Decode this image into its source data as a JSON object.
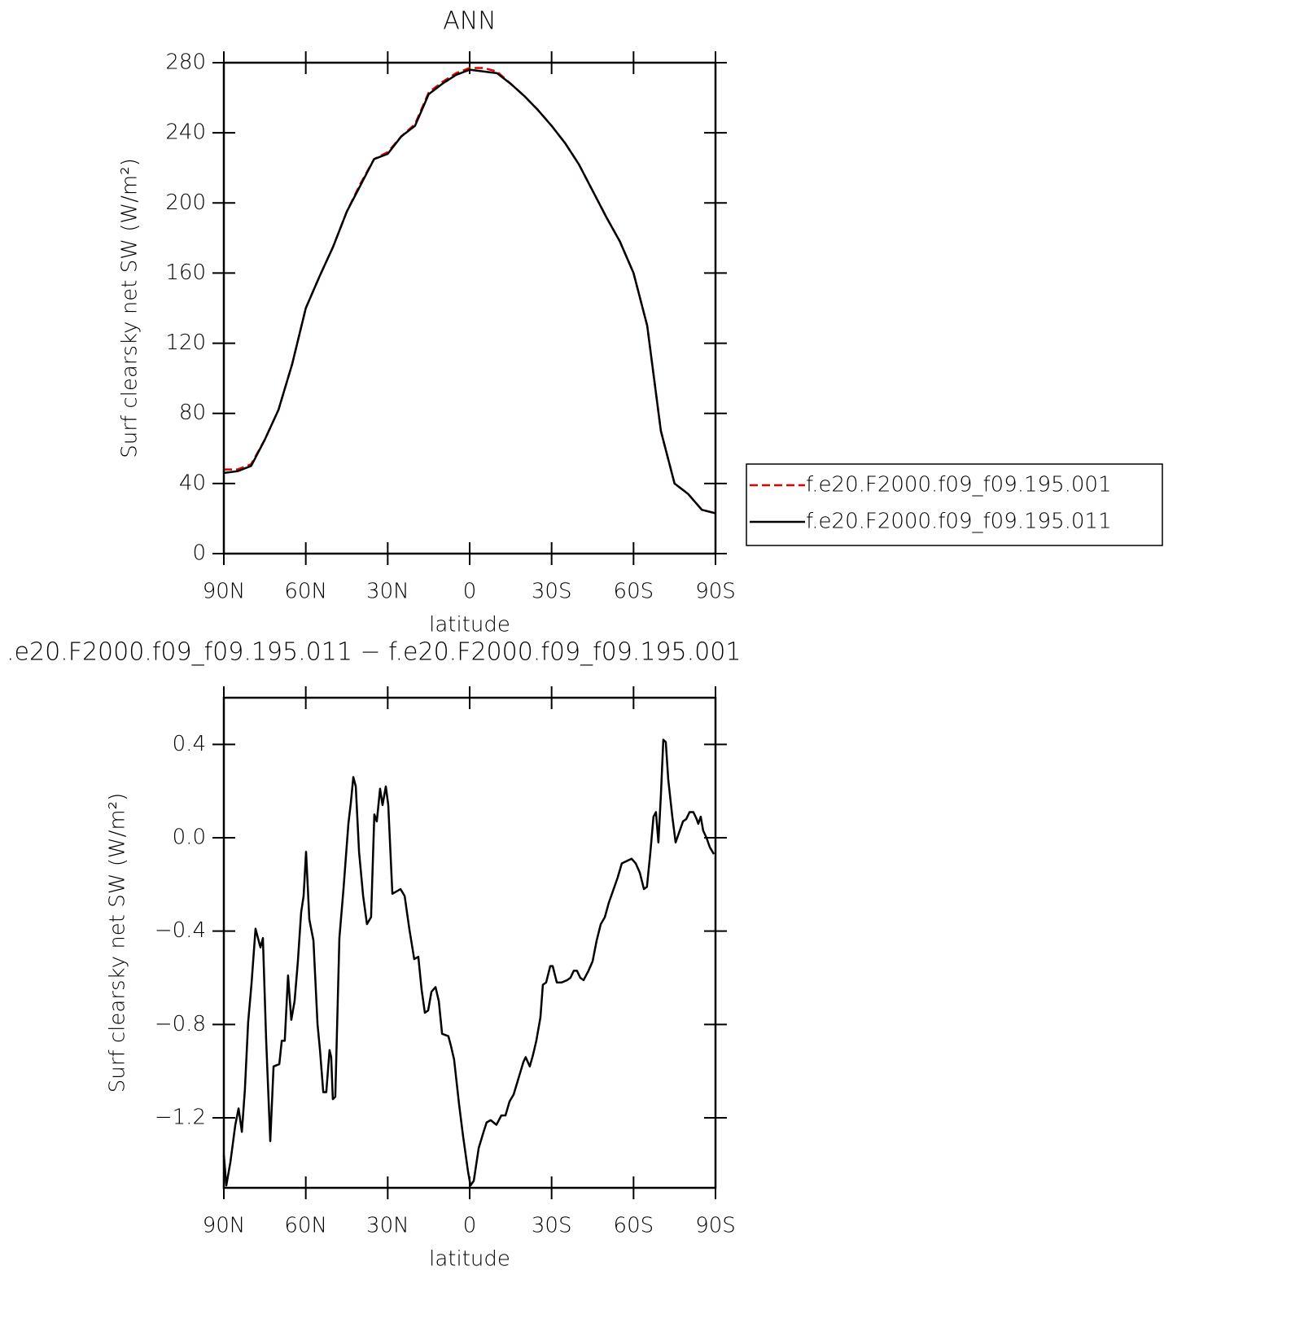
{
  "chart_data": [
    {
      "type": "line",
      "title": "ANN",
      "xlabel": "latitude",
      "ylabel": "Surf clearsky net SW (W/m²)",
      "x": [
        90,
        85,
        80,
        75,
        70,
        65,
        60,
        55,
        50,
        45,
        40,
        35,
        30,
        25,
        20,
        15,
        10,
        5,
        0,
        -5,
        -10,
        -15,
        -20,
        -25,
        -30,
        -35,
        -40,
        -45,
        -50,
        -55,
        -60,
        -65,
        -70,
        -75,
        -80,
        -85,
        -90
      ],
      "series": [
        {
          "name": "f.e20.F2000.f09_f09.195.001",
          "color": "#e00000",
          "line_style": "dashed",
          "values": [
            48,
            48,
            51,
            65,
            82,
            108,
            140,
            158,
            175,
            195,
            211,
            225,
            229,
            238,
            245,
            263,
            269,
            274,
            277,
            277,
            275,
            268,
            261,
            253,
            244,
            234,
            222,
            207,
            192,
            178,
            160,
            130,
            70,
            40,
            34,
            25,
            23
          ]
        },
        {
          "name": "f.e20.F2000.f09_f09.195.011",
          "color": "#000000",
          "line_style": "solid",
          "values": [
            46,
            47,
            50,
            65,
            82,
            108,
            140,
            158,
            175,
            195,
            210,
            225,
            228,
            238,
            244,
            262,
            268,
            273,
            276,
            275,
            274,
            268,
            261,
            253,
            244,
            234,
            222,
            207,
            192,
            178,
            160,
            130,
            70,
            40,
            34,
            25,
            23
          ]
        }
      ],
      "xlim": [
        90,
        -90
      ],
      "xticks": [
        {
          "value": 90,
          "label": "90N"
        },
        {
          "value": 60,
          "label": "60N"
        },
        {
          "value": 30,
          "label": "30N"
        },
        0,
        {
          "value": -30,
          "label": "30S"
        },
        {
          "value": -60,
          "label": "60S"
        },
        {
          "value": -90,
          "label": "90S"
        }
      ],
      "ylim": [
        0,
        280
      ],
      "yticks": [
        0,
        40,
        80,
        120,
        160,
        200,
        240,
        280
      ],
      "legend": "right"
    },
    {
      "type": "line",
      "title": ".e20.F2000.f09_f09.195.011 − f.e20.F2000.f09_f09.195.001",
      "xlabel": "latitude",
      "ylabel": "Surf clearsky net SW (W/m²)",
      "x": [
        90,
        89.1,
        87.6,
        85.8,
        84.6,
        83.4,
        82.3,
        81.1,
        79.9,
        78.4,
        76.6,
        75.7,
        74.5,
        73,
        71.8,
        69.7,
        68.8,
        67.7,
        66.5,
        65.3,
        64.1,
        62.9,
        61.7,
        60.8,
        59.9,
        58.7,
        57.2,
        55.7,
        54.8,
        53.6,
        52.5,
        51.3,
        50.7,
        50.1,
        49.2,
        47.7,
        46.2,
        44.4,
        43.5,
        42.6,
        41.7,
        40.5,
        39,
        37.6,
        36.1,
        34.9,
        34,
        32.8,
        31.9,
        30.7,
        29.8,
        28.3,
        26.8,
        25.3,
        23.8,
        22.1,
        20.3,
        18.8,
        17.6,
        16.4,
        15.2,
        14,
        12.5,
        11.3,
        10.1,
        7.8,
        6.9,
        5.7,
        3.9,
        2.4,
        0.6,
        -0.3,
        -1.5,
        -3.3,
        -5.1,
        -6.2,
        -7.7,
        -9.8,
        -11.6,
        -13.1,
        -14.6,
        -16.1,
        -17.9,
        -19.7,
        -20.5,
        -22,
        -23.2,
        -24.4,
        -25.9,
        -26.8,
        -28,
        -29.5,
        -30.4,
        -31.9,
        -33.7,
        -35.7,
        -36.9,
        -38.1,
        -39.3,
        -40.5,
        -41.7,
        -43.5,
        -45,
        -46.5,
        -48,
        -49.5,
        -50.9,
        -52.4,
        -54.2,
        -55.7,
        -57.5,
        -59.3,
        -60.8,
        -62.3,
        -63.8,
        -64.9,
        -66.1,
        -67.3,
        -68.2,
        -69.1,
        -70,
        -70.9,
        -71.8,
        -72.7,
        -74.2,
        -75.4,
        -76.9,
        -78.1,
        -79.3,
        -80.5,
        -81.9,
        -83.1,
        -83.7,
        -84.6,
        -85.5,
        -86.7,
        -87.9,
        -89.4
      ],
      "series": [
        {
          "color": "#000000",
          "line_style": "solid",
          "values": [
            -1.36,
            -1.49,
            -1.39,
            -1.23,
            -1.16,
            -1.26,
            -1.08,
            -0.79,
            -0.63,
            -0.39,
            -0.47,
            -0.43,
            -0.87,
            -1.3,
            -0.98,
            -0.97,
            -0.87,
            -0.87,
            -0.59,
            -0.78,
            -0.7,
            -0.53,
            -0.32,
            -0.25,
            -0.06,
            -0.35,
            -0.44,
            -0.8,
            -0.91,
            -1.09,
            -1.09,
            -0.91,
            -0.94,
            -1.12,
            -1.11,
            -0.43,
            -0.22,
            0.06,
            0.15,
            0.26,
            0.22,
            -0.06,
            -0.25,
            -0.37,
            -0.34,
            0.1,
            0.07,
            0.21,
            0.14,
            0.22,
            0.14,
            -0.24,
            -0.23,
            -0.22,
            -0.25,
            -0.39,
            -0.52,
            -0.51,
            -0.65,
            -0.75,
            -0.74,
            -0.66,
            -0.64,
            -0.7,
            -0.84,
            -0.85,
            -0.89,
            -0.95,
            -1.14,
            -1.28,
            -1.43,
            -1.49,
            -1.47,
            -1.33,
            -1.26,
            -1.22,
            -1.21,
            -1.23,
            -1.19,
            -1.19,
            -1.13,
            -1.1,
            -1.03,
            -0.96,
            -0.94,
            -0.98,
            -0.93,
            -0.87,
            -0.77,
            -0.63,
            -0.62,
            -0.55,
            -0.55,
            -0.62,
            -0.62,
            -0.61,
            -0.6,
            -0.57,
            -0.57,
            -0.6,
            -0.61,
            -0.57,
            -0.53,
            -0.44,
            -0.37,
            -0.34,
            -0.28,
            -0.23,
            -0.17,
            -0.11,
            -0.1,
            -0.09,
            -0.11,
            -0.15,
            -0.22,
            -0.21,
            -0.07,
            0.09,
            0.11,
            -0.02,
            0.18,
            0.42,
            0.41,
            0.25,
            0.09,
            -0.02,
            0.03,
            0.07,
            0.08,
            0.11,
            0.11,
            0.08,
            0.06,
            0.09,
            0.03,
            0,
            -0.04,
            -0.07
          ]
        }
      ],
      "xlim": [
        90,
        -90
      ],
      "xticks": [
        {
          "value": 90,
          "label": "90N"
        },
        {
          "value": 60,
          "label": "60N"
        },
        {
          "value": 30,
          "label": "30N"
        },
        0,
        {
          "value": -30,
          "label": "30S"
        },
        {
          "value": -60,
          "label": "60S"
        },
        {
          "value": -90,
          "label": "90S"
        }
      ],
      "ylim": [
        -1.5,
        0.6
      ],
      "yticks": [
        {
          "value": -1.2,
          "label": "−1.2"
        },
        {
          "value": -0.8,
          "label": "−0.8"
        },
        {
          "value": -0.4,
          "label": "−0.4"
        },
        {
          "value": 0,
          "label": "0.0"
        },
        0.4
      ]
    }
  ]
}
